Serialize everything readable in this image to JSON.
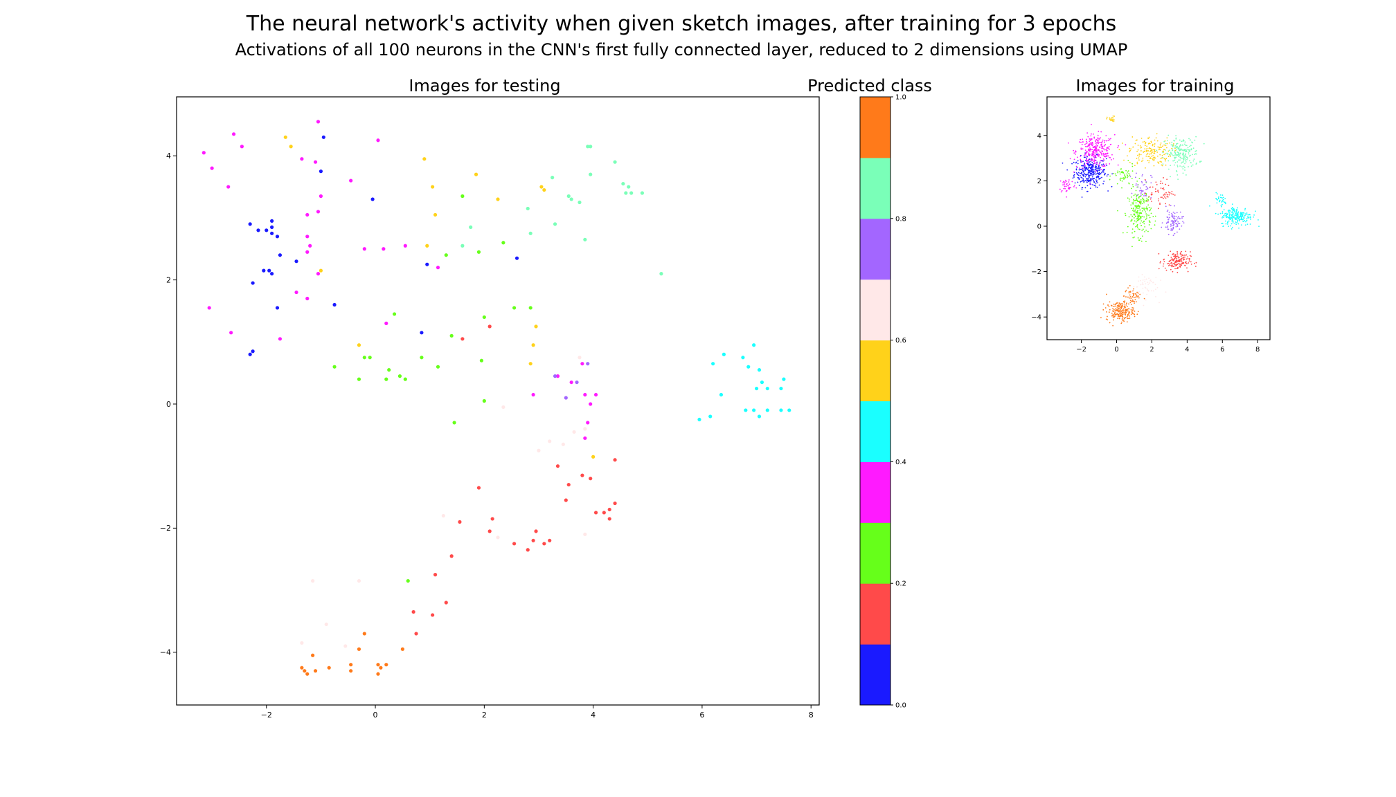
{
  "figure": {
    "title": "The neural network's activity when given sketch images, after training for 3 epochs",
    "subtitle": "Activations of all 100 neurons in the CNN's first fully connected layer, reduced to 2 dimensions using UMAP"
  },
  "class_colors": [
    "#1a1aff",
    "#ff4a4a",
    "#66ff1a",
    "#ff1aff",
    "#1affff",
    "#ffd21a",
    "#ffe8e8",
    "#a366ff",
    "#7affb8",
    "#ff7a1a"
  ],
  "chart_data": [
    {
      "type": "scatter",
      "title": "Images for testing",
      "xlabel": "",
      "ylabel": "",
      "xlim": [
        -3.65,
        8.15
      ],
      "ylim": [
        -4.85,
        4.95
      ],
      "xticks": [
        -2,
        0,
        2,
        4,
        6,
        8
      ],
      "yticks": [
        -4,
        -2,
        0,
        2,
        4
      ],
      "grid": false,
      "series": [
        {
          "class": 0,
          "points": [
            [
              -2.3,
              2.9
            ],
            [
              -2.15,
              2.8
            ],
            [
              -2.0,
              2.8
            ],
            [
              -1.9,
              2.95
            ],
            [
              -1.9,
              2.85
            ],
            [
              -1.9,
              2.75
            ],
            [
              -1.8,
              2.7
            ],
            [
              -1.75,
              2.4
            ],
            [
              -1.95,
              2.15
            ],
            [
              -2.05,
              2.15
            ],
            [
              -1.9,
              2.1
            ],
            [
              -2.25,
              1.95
            ],
            [
              -1.8,
              1.55
            ],
            [
              -1.45,
              2.3
            ],
            [
              -0.95,
              4.3
            ],
            [
              -1.0,
              3.75
            ],
            [
              -0.05,
              3.3
            ],
            [
              -0.75,
              1.6
            ],
            [
              -2.25,
              0.85
            ],
            [
              -2.3,
              0.8
            ],
            [
              0.85,
              1.15
            ],
            [
              0.95,
              2.25
            ],
            [
              2.6,
              2.35
            ]
          ]
        },
        {
          "class": 1,
          "points": [
            [
              1.6,
              1.05
            ],
            [
              2.1,
              1.25
            ],
            [
              3.35,
              -1.0
            ],
            [
              3.55,
              -1.3
            ],
            [
              3.5,
              -1.55
            ],
            [
              3.8,
              -1.15
            ],
            [
              3.95,
              -1.2
            ],
            [
              4.4,
              -0.9
            ],
            [
              4.05,
              -1.75
            ],
            [
              4.2,
              -1.75
            ],
            [
              4.3,
              -1.7
            ],
            [
              4.3,
              -1.85
            ],
            [
              4.4,
              -1.6
            ],
            [
              1.9,
              -1.35
            ],
            [
              1.55,
              -1.9
            ],
            [
              2.15,
              -1.85
            ],
            [
              2.1,
              -2.05
            ],
            [
              2.55,
              -2.25
            ],
            [
              2.8,
              -2.35
            ],
            [
              2.95,
              -2.05
            ],
            [
              2.9,
              -2.2
            ],
            [
              3.1,
              -2.25
            ],
            [
              3.2,
              -2.2
            ],
            [
              1.4,
              -2.45
            ],
            [
              1.1,
              -2.75
            ],
            [
              1.3,
              -3.2
            ],
            [
              0.7,
              -3.35
            ],
            [
              1.05,
              -3.4
            ],
            [
              0.75,
              -3.7
            ]
          ]
        },
        {
          "class": 2,
          "points": [
            [
              -0.75,
              0.6
            ],
            [
              -0.3,
              0.4
            ],
            [
              -0.2,
              0.75
            ],
            [
              -0.1,
              0.75
            ],
            [
              0.2,
              0.4
            ],
            [
              0.25,
              0.55
            ],
            [
              0.35,
              1.45
            ],
            [
              0.45,
              0.45
            ],
            [
              0.55,
              0.4
            ],
            [
              0.85,
              0.75
            ],
            [
              1.15,
              0.6
            ],
            [
              1.4,
              1.1
            ],
            [
              1.45,
              -0.3
            ],
            [
              1.95,
              0.7
            ],
            [
              2.0,
              0.05
            ],
            [
              2.0,
              1.4
            ],
            [
              2.55,
              1.55
            ],
            [
              2.85,
              1.55
            ],
            [
              1.3,
              2.4
            ],
            [
              1.6,
              3.35
            ],
            [
              1.9,
              2.45
            ],
            [
              2.35,
              2.6
            ],
            [
              0.6,
              -2.85
            ]
          ]
        },
        {
          "class": 3,
          "points": [
            [
              -3.15,
              4.05
            ],
            [
              -3.0,
              3.8
            ],
            [
              -2.6,
              4.35
            ],
            [
              -2.45,
              4.15
            ],
            [
              -2.7,
              3.5
            ],
            [
              -1.35,
              3.95
            ],
            [
              -1.1,
              3.9
            ],
            [
              -1.05,
              4.55
            ],
            [
              -1.0,
              3.35
            ],
            [
              -1.25,
              3.05
            ],
            [
              -1.05,
              3.1
            ],
            [
              -1.25,
              2.7
            ],
            [
              -1.2,
              2.55
            ],
            [
              -1.25,
              2.45
            ],
            [
              -1.05,
              2.1
            ],
            [
              -1.45,
              1.8
            ],
            [
              -1.25,
              1.7
            ],
            [
              -3.05,
              1.55
            ],
            [
              -2.65,
              1.15
            ],
            [
              -1.75,
              1.05
            ],
            [
              -0.45,
              3.6
            ],
            [
              -0.2,
              2.5
            ],
            [
              0.15,
              2.5
            ],
            [
              0.05,
              4.25
            ],
            [
              0.55,
              2.55
            ],
            [
              1.15,
              2.2
            ],
            [
              0.2,
              1.3
            ],
            [
              2.9,
              0.15
            ],
            [
              3.35,
              0.45
            ],
            [
              3.6,
              0.35
            ],
            [
              3.8,
              0.65
            ],
            [
              3.85,
              0.15
            ],
            [
              3.85,
              -0.55
            ],
            [
              3.95,
              0.0
            ],
            [
              3.9,
              -0.3
            ],
            [
              4.05,
              0.15
            ]
          ]
        },
        {
          "class": 4,
          "points": [
            [
              6.2,
              0.65
            ],
            [
              6.4,
              0.8
            ],
            [
              6.35,
              0.15
            ],
            [
              6.75,
              0.75
            ],
            [
              6.85,
              0.6
            ],
            [
              6.95,
              0.95
            ],
            [
              7.05,
              0.55
            ],
            [
              7.1,
              0.35
            ],
            [
              7.0,
              0.25
            ],
            [
              7.2,
              0.25
            ],
            [
              7.45,
              0.25
            ],
            [
              7.5,
              0.4
            ],
            [
              6.8,
              -0.1
            ],
            [
              6.95,
              -0.1
            ],
            [
              7.05,
              -0.2
            ],
            [
              7.2,
              -0.1
            ],
            [
              7.45,
              -0.1
            ],
            [
              7.6,
              -0.1
            ],
            [
              5.95,
              -0.25
            ],
            [
              6.15,
              -0.2
            ]
          ]
        },
        {
          "class": 5,
          "points": [
            [
              -1.65,
              4.3
            ],
            [
              -1.55,
              4.15
            ],
            [
              -1.0,
              2.15
            ],
            [
              0.9,
              3.95
            ],
            [
              1.05,
              3.5
            ],
            [
              1.1,
              3.05
            ],
            [
              1.85,
              3.7
            ],
            [
              2.25,
              3.3
            ],
            [
              3.05,
              3.5
            ],
            [
              3.1,
              3.45
            ],
            [
              2.95,
              1.25
            ],
            [
              2.9,
              0.95
            ],
            [
              2.85,
              0.65
            ],
            [
              4.0,
              -0.85
            ],
            [
              -0.3,
              0.95
            ],
            [
              0.95,
              2.55
            ]
          ]
        },
        {
          "class": 6,
          "points": [
            [
              -1.15,
              -2.85
            ],
            [
              -1.35,
              -3.85
            ],
            [
              -0.9,
              -3.55
            ],
            [
              -0.3,
              -2.85
            ],
            [
              -0.55,
              -3.9
            ],
            [
              1.25,
              -1.8
            ],
            [
              2.25,
              -2.15
            ],
            [
              3.85,
              -2.1
            ],
            [
              3.0,
              -0.75
            ],
            [
              3.2,
              -0.6
            ],
            [
              3.45,
              -0.65
            ],
            [
              3.85,
              -0.4
            ],
            [
              3.65,
              -0.45
            ],
            [
              2.35,
              -0.05
            ],
            [
              3.75,
              0.75
            ]
          ]
        },
        {
          "class": 7,
          "points": [
            [
              3.9,
              0.65
            ],
            [
              3.7,
              0.35
            ],
            [
              3.5,
              0.1
            ],
            [
              3.3,
              0.45
            ]
          ]
        },
        {
          "class": 8,
          "points": [
            [
              3.25,
              3.65
            ],
            [
              3.55,
              3.35
            ],
            [
              3.6,
              3.3
            ],
            [
              3.75,
              3.25
            ],
            [
              3.85,
              2.65
            ],
            [
              3.95,
              3.7
            ],
            [
              3.95,
              4.15
            ],
            [
              3.9,
              4.15
            ],
            [
              4.4,
              3.9
            ],
            [
              4.55,
              3.55
            ],
            [
              4.6,
              3.4
            ],
            [
              4.65,
              3.5
            ],
            [
              4.7,
              3.4
            ],
            [
              4.9,
              3.4
            ],
            [
              2.8,
              3.15
            ],
            [
              2.85,
              2.75
            ],
            [
              3.3,
              2.9
            ],
            [
              1.6,
              2.55
            ],
            [
              1.75,
              2.85
            ],
            [
              5.25,
              2.1
            ]
          ]
        },
        {
          "class": 9,
          "points": [
            [
              -1.35,
              -4.25
            ],
            [
              -1.3,
              -4.3
            ],
            [
              -1.25,
              -4.35
            ],
            [
              -1.15,
              -4.05
            ],
            [
              -1.1,
              -4.3
            ],
            [
              -0.85,
              -4.25
            ],
            [
              -0.45,
              -4.2
            ],
            [
              -0.45,
              -4.3
            ],
            [
              -0.3,
              -3.95
            ],
            [
              -0.2,
              -3.7
            ],
            [
              0.05,
              -4.2
            ],
            [
              0.05,
              -4.35
            ],
            [
              0.1,
              -4.25
            ],
            [
              0.2,
              -4.2
            ],
            [
              0.5,
              -3.95
            ]
          ]
        }
      ]
    },
    {
      "type": "heatmap",
      "title": "Predicted class",
      "ticks": [
        "0.0",
        "0.2",
        "0.4",
        "0.6",
        "0.8",
        "1.0"
      ],
      "range": [
        0,
        1
      ],
      "bands": 10
    },
    {
      "type": "scatter",
      "title": "Images for training",
      "xlim": [
        -3.95,
        8.7
      ],
      "ylim": [
        -5.0,
        5.7
      ],
      "xticks": [
        -2,
        0,
        2,
        4,
        6,
        8
      ],
      "yticks": [
        -4,
        -2,
        0,
        2,
        4
      ],
      "grid": false,
      "clusters": [
        {
          "class": 0,
          "center": [
            -1.5,
            2.4
          ],
          "spread": [
            0.75,
            0.55
          ],
          "n": 320
        },
        {
          "class": 3,
          "center": [
            -1.2,
            3.3
          ],
          "spread": [
            0.9,
            0.6
          ],
          "n": 300
        },
        {
          "class": 3,
          "center": [
            -2.8,
            1.8
          ],
          "spread": [
            0.4,
            0.3
          ],
          "n": 40
        },
        {
          "class": 5,
          "center": [
            1.9,
            3.3
          ],
          "spread": [
            1.0,
            0.55
          ],
          "n": 170
        },
        {
          "class": 5,
          "center": [
            -0.3,
            4.7
          ],
          "spread": [
            0.2,
            0.12
          ],
          "n": 25
        },
        {
          "class": 8,
          "center": [
            3.7,
            3.2
          ],
          "spread": [
            0.8,
            0.6
          ],
          "n": 200
        },
        {
          "class": 2,
          "center": [
            1.3,
            0.6
          ],
          "spread": [
            0.55,
            0.85
          ],
          "n": 220
        },
        {
          "class": 2,
          "center": [
            0.4,
            2.2
          ],
          "spread": [
            0.5,
            0.4
          ],
          "n": 50
        },
        {
          "class": 7,
          "center": [
            3.2,
            0.2
          ],
          "spread": [
            0.45,
            0.45
          ],
          "n": 90
        },
        {
          "class": 7,
          "center": [
            1.5,
            1.8
          ],
          "spread": [
            0.4,
            0.5
          ],
          "n": 40
        },
        {
          "class": 1,
          "center": [
            3.4,
            -1.55
          ],
          "spread": [
            0.65,
            0.35
          ],
          "n": 160
        },
        {
          "class": 1,
          "center": [
            2.5,
            1.5
          ],
          "spread": [
            0.6,
            0.5
          ],
          "n": 60
        },
        {
          "class": 4,
          "center": [
            6.8,
            0.45
          ],
          "spread": [
            0.75,
            0.35
          ],
          "n": 220
        },
        {
          "class": 4,
          "center": [
            5.9,
            1.15
          ],
          "spread": [
            0.3,
            0.25
          ],
          "n": 30
        },
        {
          "class": 9,
          "center": [
            0.2,
            -3.75
          ],
          "spread": [
            0.65,
            0.35
          ],
          "n": 200
        },
        {
          "class": 9,
          "center": [
            0.9,
            -3.1
          ],
          "spread": [
            0.4,
            0.35
          ],
          "n": 50
        },
        {
          "class": 6,
          "center": [
            1.6,
            -2.6
          ],
          "spread": [
            0.6,
            0.5
          ],
          "n": 50
        }
      ]
    }
  ]
}
